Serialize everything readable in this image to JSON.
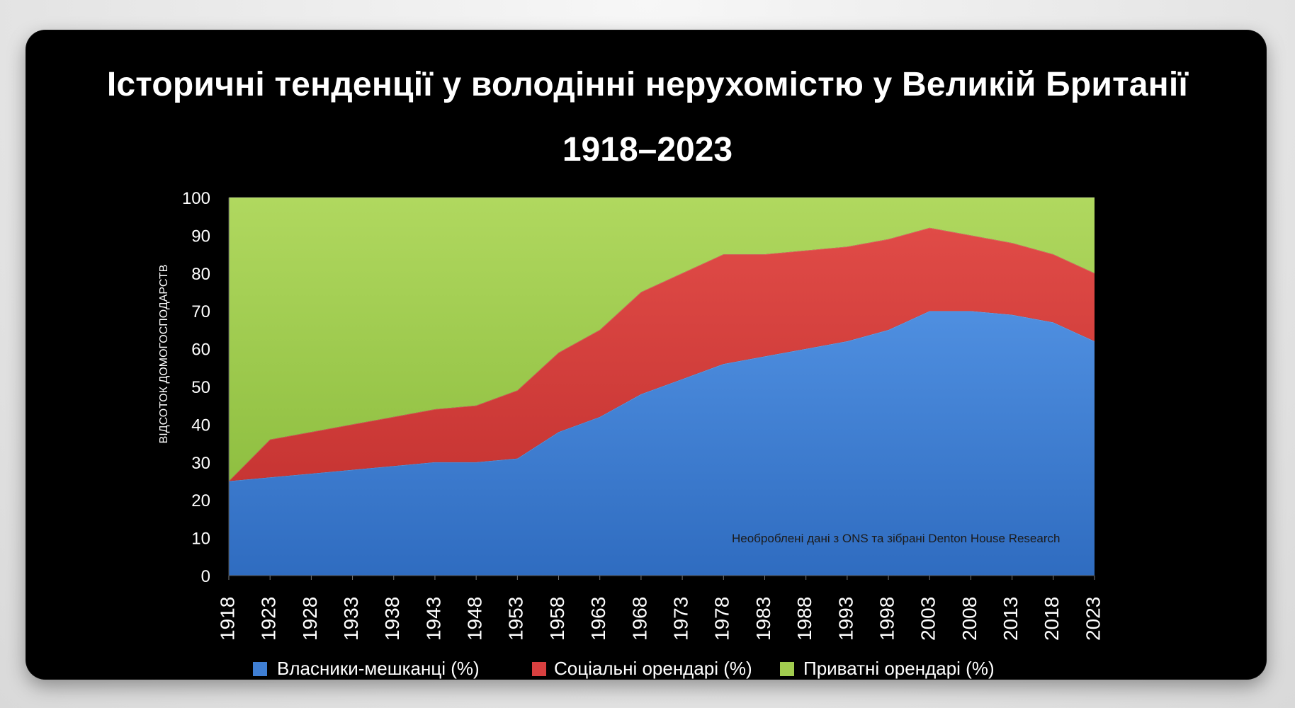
{
  "chart_data": {
    "type": "area",
    "title": "Історичні тенденції у володінні нерухомістю у Великій Британії",
    "subtitle": "1918–2023",
    "xlabel": "",
    "ylabel": "ВІДСОТОК ДОМОГОСПОДАРСТВ",
    "ylim": [
      0,
      100
    ],
    "y_ticks": [
      0,
      10,
      20,
      30,
      40,
      50,
      60,
      70,
      80,
      90,
      100
    ],
    "x": [
      1918,
      1923,
      1928,
      1933,
      1938,
      1943,
      1948,
      1953,
      1958,
      1963,
      1968,
      1973,
      1978,
      1983,
      1988,
      1993,
      1998,
      2003,
      2008,
      2013,
      2018,
      2023
    ],
    "stacked": true,
    "series": [
      {
        "name": "Власники-мешканці (%)",
        "values": [
          25,
          26,
          27,
          28,
          29,
          30,
          30,
          31,
          38,
          42,
          48,
          52,
          56,
          58,
          60,
          62,
          65,
          70,
          70,
          69,
          67,
          62
        ],
        "color": "#3f7fd4"
      },
      {
        "name": "Соціальні орендарі (%)",
        "values": [
          0,
          10,
          11,
          12,
          13,
          14,
          15,
          18,
          21,
          23,
          27,
          28,
          29,
          27,
          26,
          25,
          24,
          22,
          20,
          19,
          18,
          18
        ],
        "color": "#d84040"
      },
      {
        "name": "Приватні орендарі (%)",
        "values": [
          75,
          64,
          62,
          60,
          58,
          56,
          55,
          51,
          41,
          35,
          25,
          20,
          15,
          15,
          14,
          13,
          11,
          8,
          10,
          12,
          15,
          20
        ],
        "color": "#a1cc4f"
      }
    ],
    "annotation": "Необроблені дані з ONS та зібрані Denton House Research",
    "grid": false,
    "legend_position": "bottom"
  }
}
